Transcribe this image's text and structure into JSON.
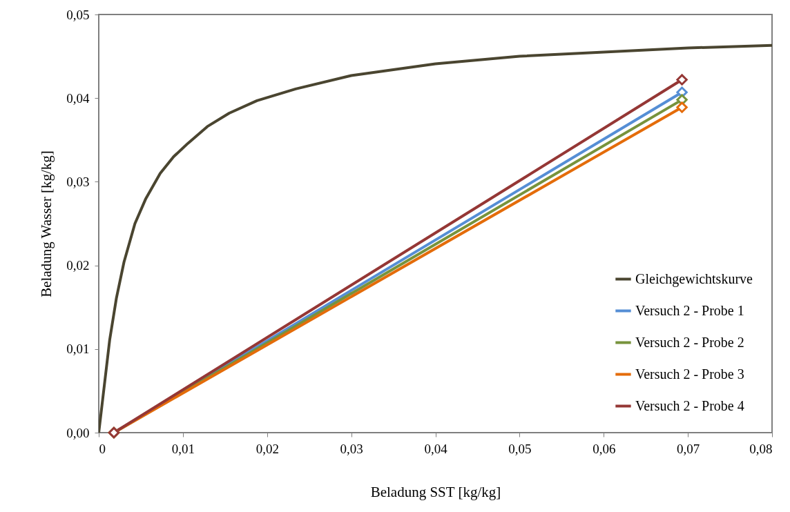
{
  "chart_data": {
    "type": "line",
    "xlabel": "Beladung SST [kg/kg]",
    "ylabel": "Beladung Wasser [kg/kg]",
    "xlim": [
      0,
      0.08
    ],
    "xticks": [
      0,
      {
        "value": 0.01,
        "label": "0,01"
      },
      {
        "value": 0.02,
        "label": "0,02"
      },
      {
        "value": 0.03,
        "label": "0,03"
      },
      {
        "value": 0.04,
        "label": "0,04"
      },
      {
        "value": 0.05,
        "label": "0,05"
      },
      {
        "value": 0.06,
        "label": "0,06"
      },
      {
        "value": 0.07,
        "label": "0,07"
      },
      {
        "value": 0.08,
        "label": "0,08"
      }
    ],
    "ylim": [
      0,
      0.05
    ],
    "yticks": [
      {
        "value": 0,
        "label": "0,00"
      },
      {
        "value": 0.01,
        "label": "0,01"
      },
      {
        "value": 0.02,
        "label": "0,02"
      },
      {
        "value": 0.03,
        "label": "0,03"
      },
      {
        "value": 0.04,
        "label": "0,04"
      },
      {
        "value": 0.05,
        "label": "0,05"
      }
    ],
    "grid": false,
    "legend": "bottom right",
    "marker": "diamond",
    "series": [
      {
        "name": "Gleichgewichtskurve",
        "color": "#4a4530",
        "marker": "none",
        "x": [
          0,
          0.0013,
          0.0021,
          0.003,
          0.0043,
          0.0056,
          0.0073,
          0.0089,
          0.0106,
          0.0129,
          0.0155,
          0.0188,
          0.0234,
          0.03,
          0.04,
          0.05,
          0.06,
          0.07,
          0.08
        ],
        "values": [
          0,
          0.0111,
          0.0161,
          0.0204,
          0.025,
          0.028,
          0.031,
          0.033,
          0.0346,
          0.0366,
          0.0382,
          0.0397,
          0.0411,
          0.0427,
          0.0441,
          0.045,
          0.0455,
          0.046,
          0.0463
        ]
      },
      {
        "name": "Versuch 2 - Probe 1",
        "color": "#558ed5",
        "x": [
          0.0018,
          0.0693
        ],
        "values": [
          0,
          0.0407
        ]
      },
      {
        "name": "Versuch 2 - Probe 2",
        "color": "#77933c",
        "x": [
          0.0018,
          0.0693
        ],
        "values": [
          0,
          0.0398
        ]
      },
      {
        "name": "Versuch 2 - Probe 3",
        "color": "#e46c0a",
        "x": [
          0.0018,
          0.0693
        ],
        "values": [
          0,
          0.0389
        ]
      },
      {
        "name": "Versuch 2 - Probe 4",
        "color": "#953735",
        "x": [
          0.0018,
          0.0693
        ],
        "values": [
          0,
          0.0422
        ]
      }
    ]
  }
}
